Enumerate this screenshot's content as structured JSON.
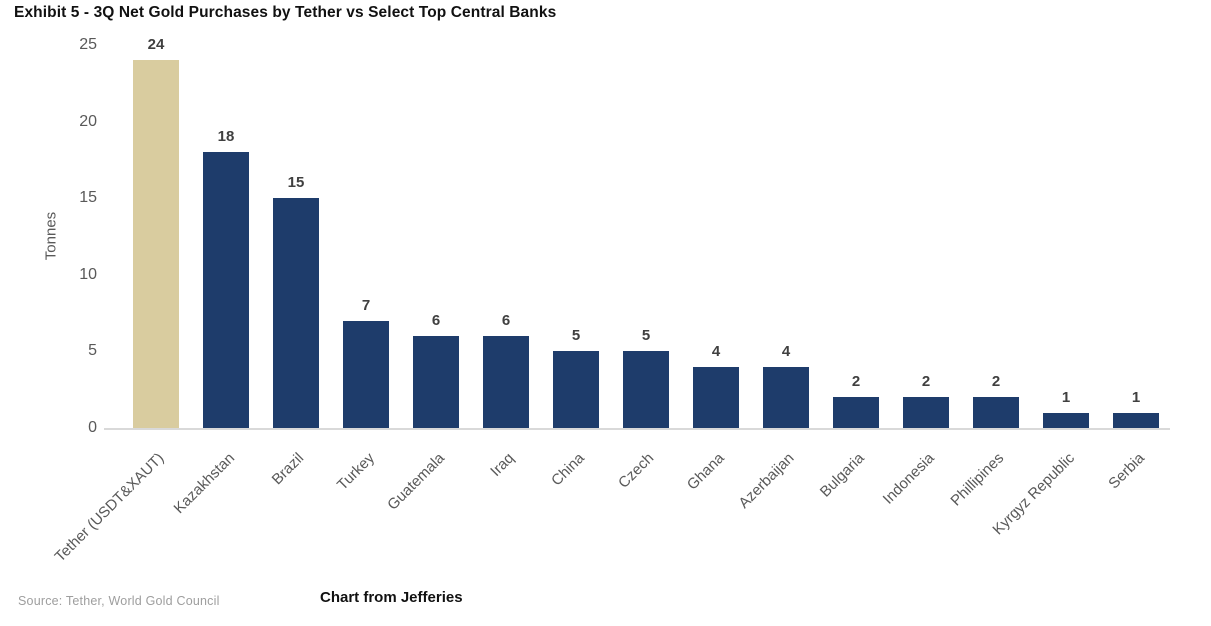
{
  "title": "Exhibit 5 - 3Q Net Gold Purchases by Tether vs Select Top Central Banks",
  "source_note": "Source: Tether, World Gold Council",
  "caption": "Chart from Jefferies",
  "colors": {
    "highlight_bar": "#d9cc9f",
    "default_bar": "#1e3c6b",
    "value_label": "#404040",
    "axis_text": "#595959",
    "source_text": "#9e9e9e",
    "axis_line": "#d9d9d9",
    "title_text": "#111111"
  },
  "chart_data": {
    "type": "bar",
    "title": "Exhibit 5 - 3Q Net Gold Purchases by Tether vs Select Top Central Banks",
    "xlabel": "",
    "ylabel": "Tonnes",
    "ylim": [
      0,
      25
    ],
    "yticks": [
      0,
      5,
      10,
      15,
      20,
      25
    ],
    "grid": false,
    "legend": false,
    "highlight_index": 0,
    "categories": [
      "Tether (USDT&XAUT)",
      "Kazakhstan",
      "Brazil",
      "Turkey",
      "Guatemala",
      "Iraq",
      "China",
      "Czech",
      "Ghana",
      "Azerbaijan",
      "Bulgaria",
      "Indonesia",
      "Phillipines",
      "Kyrgyz Republic",
      "Serbia"
    ],
    "values": [
      24,
      18,
      15,
      7,
      6,
      6,
      5,
      5,
      4,
      4,
      2,
      2,
      2,
      1,
      1
    ]
  }
}
